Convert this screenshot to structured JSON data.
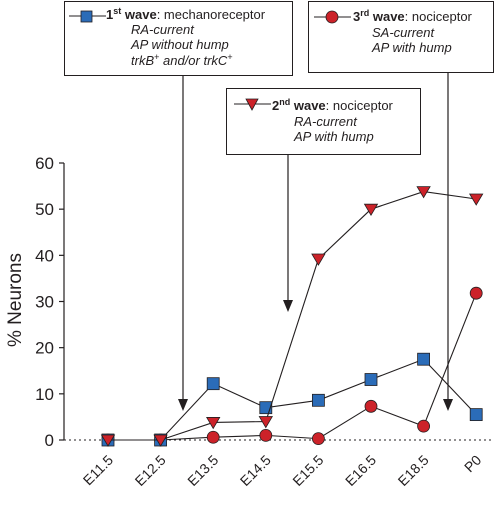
{
  "chart_data": {
    "type": "line",
    "ylabel": "% Neurons",
    "xlabel": "",
    "ylim": [
      0,
      60
    ],
    "yticks": [
      "0",
      "10",
      "20",
      "30",
      "40",
      "50",
      "60"
    ],
    "categories": [
      "E11.5",
      "E12.5",
      "E13.5",
      "E14.5",
      "E15.5",
      "E16.5",
      "E18.5",
      "P0"
    ],
    "series": [
      {
        "name": "1st wave",
        "marker": "square",
        "color": "#2b6cb8",
        "values": [
          0,
          0,
          12.2,
          7,
          8.6,
          13.1,
          17.5,
          5.5
        ]
      },
      {
        "name": "2nd wave",
        "marker": "triangle-down",
        "color": "#cc2229",
        "values": [
          0,
          0,
          3.8,
          4,
          39.2,
          50,
          53.8,
          52.2
        ]
      },
      {
        "name": "3rd wave",
        "marker": "circle",
        "color": "#cc2229",
        "values": [
          0,
          0,
          0.6,
          1,
          0.3,
          7.3,
          3,
          31.8
        ]
      }
    ],
    "legend": {
      "first": {
        "ordinal": "1",
        "suffix": "st",
        "word": "wave",
        "type": ": mechanoreceptor",
        "lines": [
          "RA-current",
          "AP without hump"
        ],
        "trk_a": "trkB",
        "trk_mid": " and/or trkC",
        "plus": "+"
      },
      "second": {
        "ordinal": "2",
        "suffix": "nd",
        "word": "wave",
        "type": ": nociceptor",
        "lines": [
          "RA-current",
          "AP with hump"
        ]
      },
      "third": {
        "ordinal": "3",
        "suffix": "rd",
        "word": "wave",
        "type": ": nociceptor",
        "lines": [
          "SA-current",
          "AP with hump"
        ]
      }
    }
  }
}
